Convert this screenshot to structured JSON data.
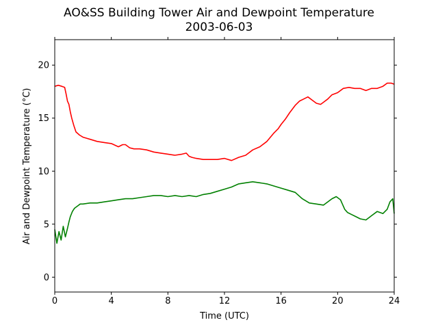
{
  "chart_data": {
    "type": "line",
    "title": "AO&SS Building Tower Air and Dewpoint Temperature",
    "subtitle": "2003-06-03",
    "xlabel": "Time (UTC)",
    "ylabel": "Air and Dewpoint Temperature (°C)",
    "xlim": [
      0,
      24
    ],
    "ylim": [
      -1.4,
      22.4
    ],
    "xticks": [
      0,
      4,
      8,
      12,
      16,
      20,
      24
    ],
    "xtick_labels": [
      "0",
      "4",
      "8",
      "12",
      "16",
      "20",
      "24"
    ],
    "yticks": [
      0,
      5,
      10,
      15,
      20
    ],
    "ytick_labels": [
      "0",
      "5",
      "10",
      "15",
      "20"
    ],
    "grid": false,
    "series": [
      {
        "color": "#ff0000",
        "x": [
          0,
          0.25,
          0.5,
          0.7,
          0.8,
          0.9,
          1.0,
          1.1,
          1.2,
          1.35,
          1.5,
          1.75,
          2.0,
          2.5,
          3.0,
          3.5,
          4.0,
          4.5,
          4.8,
          5.0,
          5.3,
          5.6,
          6.0,
          6.5,
          7.0,
          7.5,
          8.0,
          8.5,
          9.0,
          9.3,
          9.5,
          9.7,
          10.0,
          10.5,
          11.0,
          11.5,
          12.0,
          12.5,
          13.0,
          13.5,
          14.0,
          14.5,
          15.0,
          15.5,
          15.8,
          16.0,
          16.3,
          16.6,
          17.0,
          17.3,
          17.6,
          17.9,
          18.2,
          18.5,
          18.8,
          19.0,
          19.3,
          19.6,
          20.0,
          20.4,
          20.8,
          21.2,
          21.6,
          22.0,
          22.4,
          22.8,
          23.2,
          23.5,
          23.8,
          24.0
        ],
        "values": [
          18.0,
          18.1,
          18.0,
          17.9,
          17.3,
          16.6,
          16.3,
          15.6,
          15.0,
          14.3,
          13.7,
          13.4,
          13.2,
          13.0,
          12.8,
          12.7,
          12.6,
          12.3,
          12.5,
          12.5,
          12.2,
          12.1,
          12.1,
          12.0,
          11.8,
          11.7,
          11.6,
          11.5,
          11.6,
          11.7,
          11.4,
          11.3,
          11.2,
          11.1,
          11.1,
          11.1,
          11.2,
          11.0,
          11.3,
          11.5,
          12.0,
          12.3,
          12.8,
          13.6,
          14.0,
          14.4,
          14.9,
          15.5,
          16.2,
          16.6,
          16.8,
          17.0,
          16.7,
          16.4,
          16.3,
          16.5,
          16.8,
          17.2,
          17.4,
          17.8,
          17.9,
          17.8,
          17.8,
          17.6,
          17.8,
          17.8,
          18.0,
          18.3,
          18.3,
          18.2
        ]
      },
      {
        "color": "#008000",
        "x": [
          0,
          0.15,
          0.3,
          0.45,
          0.6,
          0.75,
          0.9,
          1.0,
          1.1,
          1.25,
          1.4,
          1.6,
          1.8,
          2.0,
          2.5,
          3.0,
          3.5,
          4.0,
          4.5,
          5.0,
          5.5,
          6.0,
          6.5,
          7.0,
          7.5,
          8.0,
          8.5,
          9.0,
          9.5,
          10.0,
          10.5,
          11.0,
          11.5,
          12.0,
          12.5,
          13.0,
          13.5,
          14.0,
          14.5,
          15.0,
          15.5,
          16.0,
          16.5,
          17.0,
          17.5,
          18.0,
          18.5,
          19.0,
          19.3,
          19.6,
          19.9,
          20.2,
          20.5,
          20.7,
          21.0,
          21.3,
          21.6,
          22.0,
          22.4,
          22.8,
          23.2,
          23.5,
          23.7,
          23.9,
          24.0
        ],
        "values": [
          4.5,
          3.2,
          4.3,
          3.5,
          4.8,
          3.8,
          4.6,
          5.2,
          5.7,
          6.2,
          6.5,
          6.7,
          6.9,
          6.9,
          7.0,
          7.0,
          7.1,
          7.2,
          7.3,
          7.4,
          7.4,
          7.5,
          7.6,
          7.7,
          7.7,
          7.6,
          7.7,
          7.6,
          7.7,
          7.6,
          7.8,
          7.9,
          8.1,
          8.3,
          8.5,
          8.8,
          8.9,
          9.0,
          8.9,
          8.8,
          8.6,
          8.4,
          8.2,
          8.0,
          7.4,
          7.0,
          6.9,
          6.8,
          7.1,
          7.4,
          7.6,
          7.3,
          6.4,
          6.1,
          5.9,
          5.7,
          5.5,
          5.4,
          5.8,
          6.2,
          6.0,
          6.4,
          7.1,
          7.4,
          6.0
        ]
      }
    ]
  }
}
